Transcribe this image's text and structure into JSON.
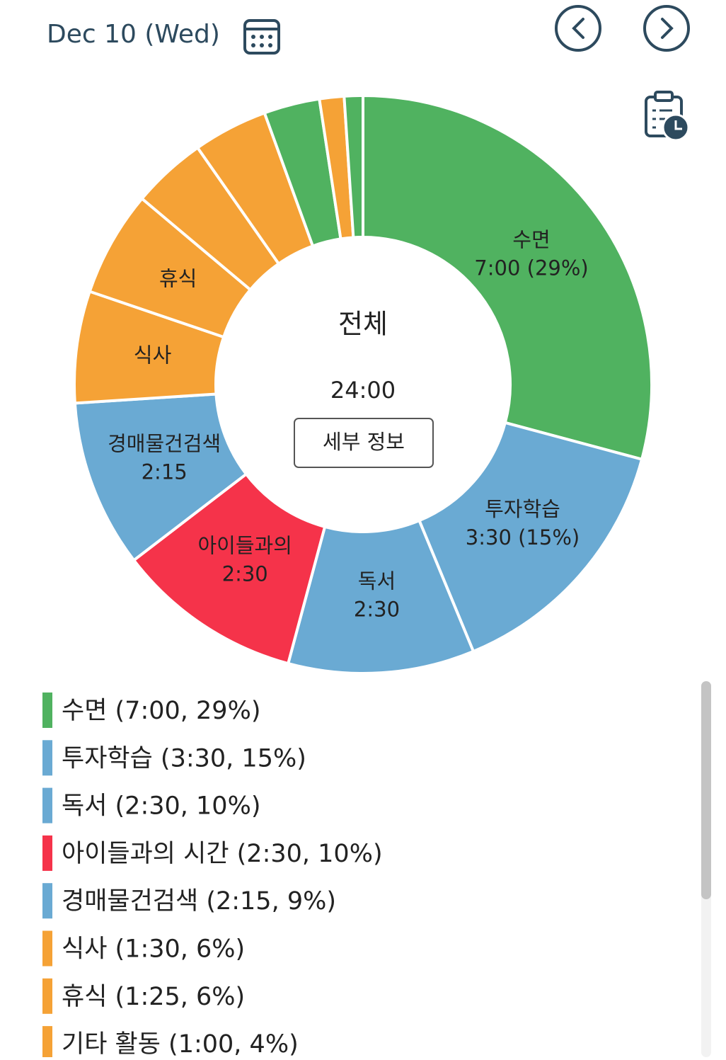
{
  "header": {
    "date": "Dec 10 (Wed)"
  },
  "chart_data": {
    "type": "donut",
    "categories": [
      "수면",
      "투자학습",
      "독서",
      "아이들과의 시간",
      "경매물건검색",
      "식사",
      "휴식",
      "기타 활동",
      null,
      null,
      null,
      null
    ],
    "values": [
      7,
      3.5,
      2.5,
      2.5,
      2.25,
      1.5,
      1.4167,
      1,
      1,
      0.75,
      0.33,
      0.25
    ],
    "colors": [
      "#50b260",
      "#6aaad3",
      "#6aaad3",
      "#f5334a",
      "#6aaad3",
      "#f5a236",
      "#f5a236",
      "#f5a236",
      "#f5a236",
      "#50b260",
      "#f5a236",
      "#50b260"
    ],
    "slice_labels": [
      {
        "name": "수면",
        "detail": "7:00 (29%)"
      },
      {
        "name": "투자학습",
        "detail": "3:30 (15%)"
      },
      {
        "name": "독서",
        "detail": "2:30"
      },
      {
        "name": "아이들과의",
        "detail": "2:30"
      },
      {
        "name": "경매물건검색",
        "detail": "2:15"
      },
      {
        "name": "식사"
      },
      {
        "name": "휴식"
      }
    ],
    "center_title": "전체",
    "center_total": "24:00",
    "detail_button": "세부 정보",
    "legend": [
      "수면 (7:00, 29%)",
      "투자학습 (3:30, 15%)",
      "독서 (2:30, 10%)",
      "아이들과의 시간 (2:30, 10%)",
      "경매물건검색 (2:15, 9%)",
      "식사 (1:30, 6%)",
      "휴식 (1:25, 6%)",
      "기타 활동 (1:00, 4%)"
    ]
  }
}
